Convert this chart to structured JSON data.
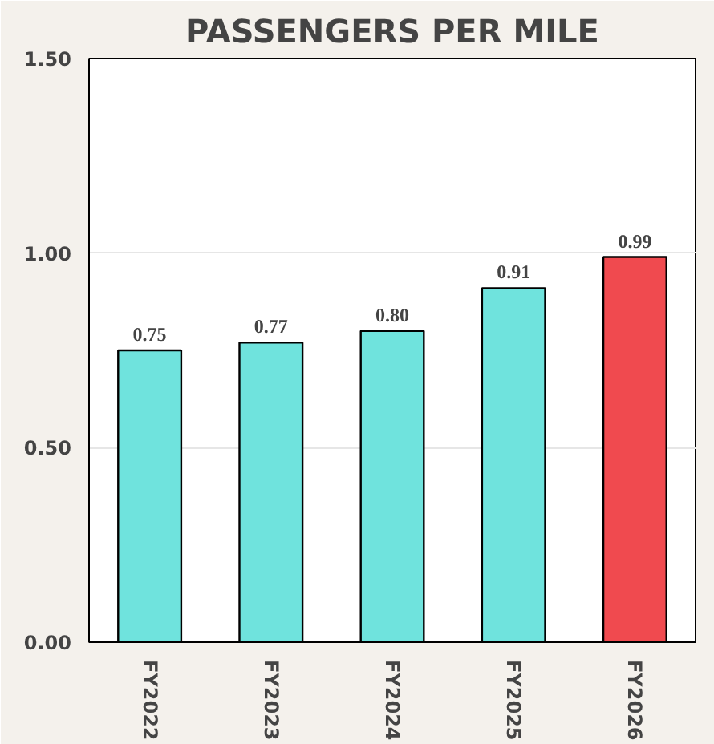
{
  "chart_data": {
    "type": "bar",
    "title": "PASSENGERS PER MILE",
    "categories": [
      "FY2022",
      "FY2023",
      "FY2024",
      "FY2025",
      "FY2026"
    ],
    "values": [
      0.75,
      0.77,
      0.8,
      0.91,
      0.99
    ],
    "value_labels": [
      "0.75",
      "0.77",
      "0.80",
      "0.91",
      "0.99"
    ],
    "colors": [
      "#6fe3dd",
      "#6fe3dd",
      "#6fe3dd",
      "#6fe3dd",
      "#f04a4f"
    ],
    "ylim": [
      0,
      1.5
    ],
    "yticks": [
      {
        "value": 0,
        "label": "0.00"
      },
      {
        "value": 0.5,
        "label": "0.50"
      },
      {
        "value": 1.0,
        "label": "1.00"
      },
      {
        "value": 1.5,
        "label": "1.50"
      }
    ],
    "grid": "y"
  }
}
